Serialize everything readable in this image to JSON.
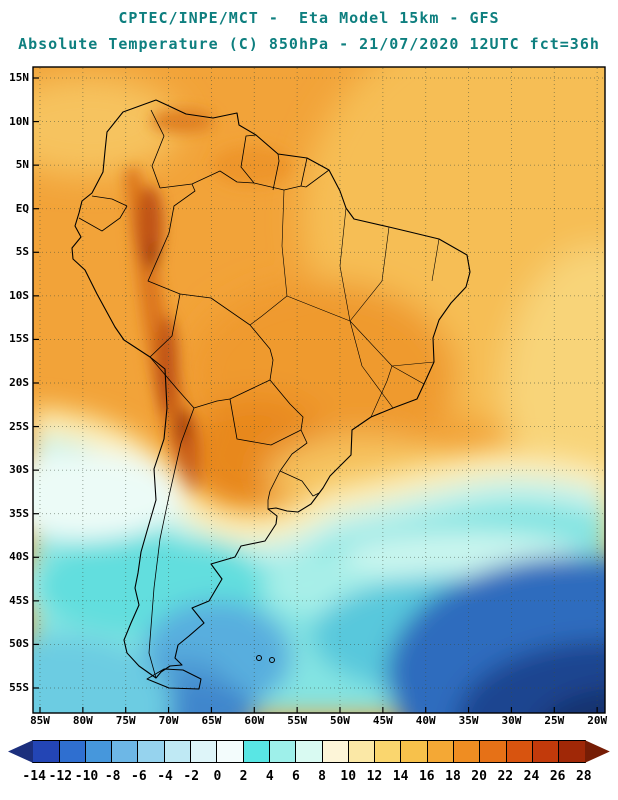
{
  "header": {
    "line1": "CPTEC/INPE/MCT -  Eta Model 15km - GFS",
    "line2": "Absolute Temperature (C) 850hPa - 21/07/2020 12UTC fct=36h",
    "title_color": "#0e7f7f"
  },
  "map": {
    "region": "South America",
    "lat_labels": [
      "15N",
      "10N",
      "5N",
      "EQ",
      "5S",
      "10S",
      "15S",
      "20S",
      "25S",
      "30S",
      "35S",
      "40S",
      "45S",
      "50S",
      "55S"
    ],
    "lon_labels": [
      "85W",
      "80W",
      "75W",
      "70W",
      "65W",
      "60W",
      "55W",
      "50W",
      "45W",
      "40W",
      "35W",
      "30W",
      "25W",
      "20W"
    ]
  },
  "colorbar": {
    "units": "C",
    "tick_labels": [
      "-14",
      "-12",
      "-10",
      "-8",
      "-6",
      "-4",
      "-2",
      "0",
      "2",
      "4",
      "6",
      "8",
      "10",
      "12",
      "14",
      "16",
      "18",
      "20",
      "22",
      "24",
      "26",
      "28"
    ],
    "segment_colors": [
      "#1c2f7d",
      "#2345b5",
      "#2f6fd0",
      "#4697dc",
      "#6db7e6",
      "#96d3ee",
      "#bfe9f4",
      "#def5f9",
      "#f3fcfc",
      "#59e6e4",
      "#9ef0ea",
      "#d9faf2",
      "#fdf5d8",
      "#fbe8a6",
      "#fad66e",
      "#f7c14b",
      "#f4a835",
      "#ef8d22",
      "#e67117",
      "#d8540f",
      "#c23a0b",
      "#a02807",
      "#761d05"
    ]
  }
}
